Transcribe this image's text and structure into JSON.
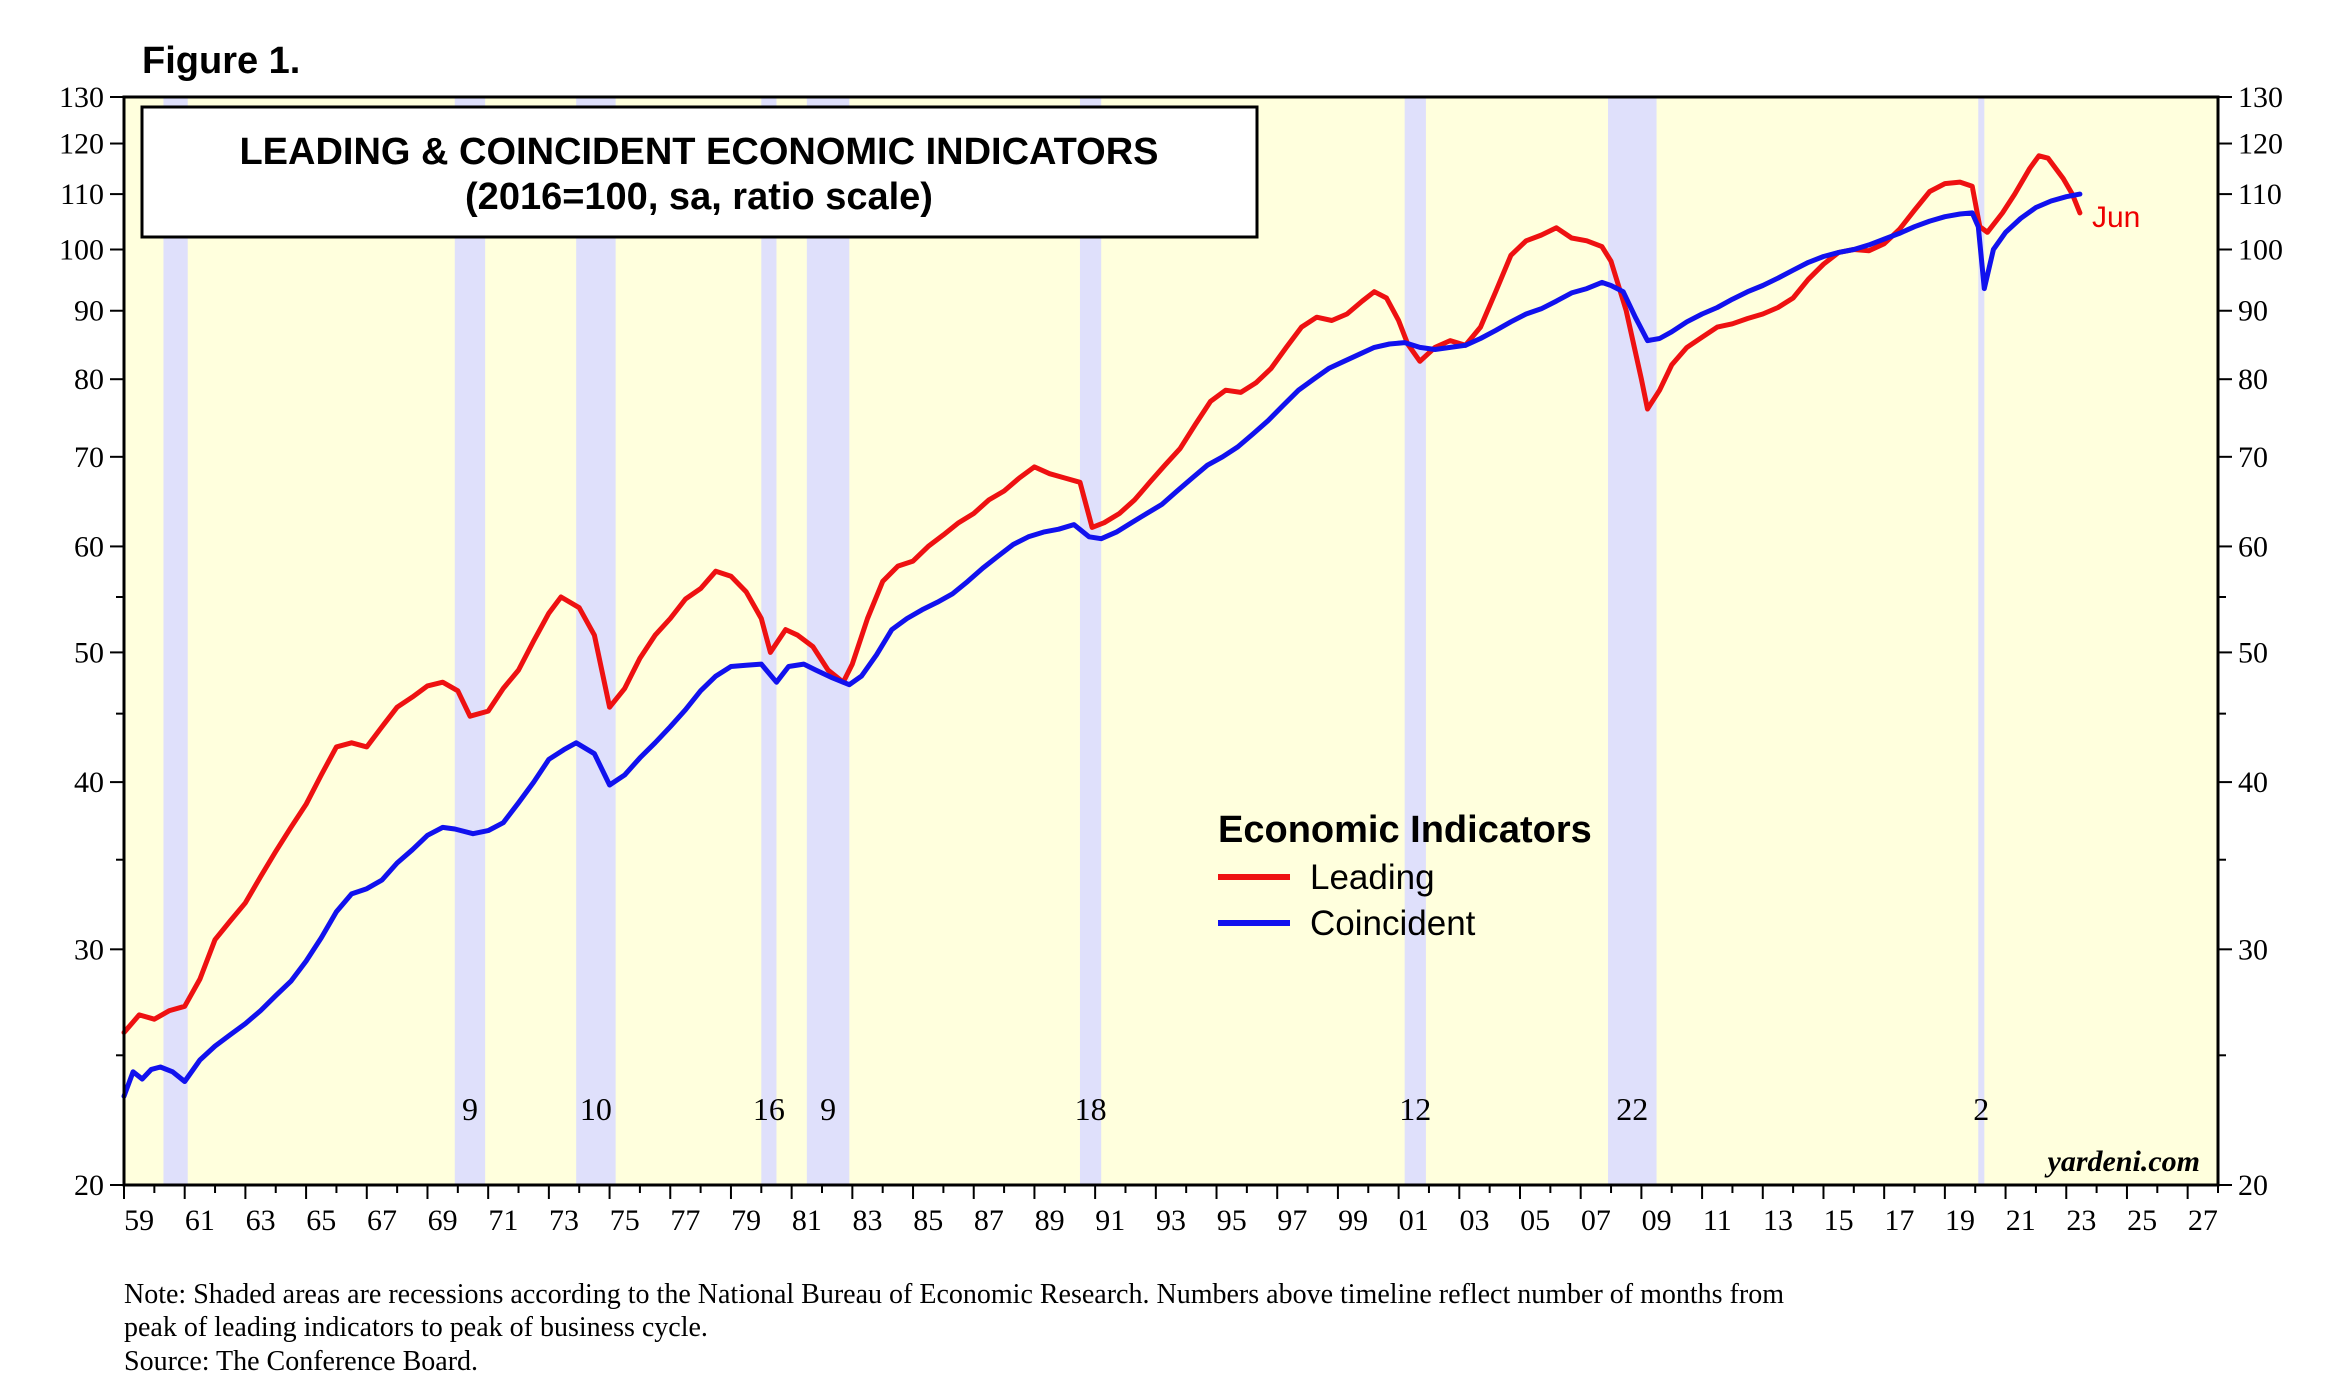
{
  "figure_label": "Figure 1.",
  "colors": {
    "plot_background": "#ffffdd",
    "recession_shading": "#dfe0fb",
    "leading": "#ee1111",
    "coincident": "#1111ee"
  },
  "chart_data": {
    "type": "line",
    "title": "LEADING & COINCIDENT ECONOMIC INDICATORS",
    "subtitle": "(2016=100, sa, ratio scale)",
    "y_scale": "log",
    "ylim": [
      20,
      130
    ],
    "xlim": [
      1959.0,
      2028.0
    ],
    "y_ticks": [
      20,
      30,
      40,
      50,
      60,
      70,
      80,
      90,
      100,
      110,
      120,
      130
    ],
    "y_minor_ticks": [
      25,
      35,
      45,
      55
    ],
    "x_tick_labels": [
      "59",
      "61",
      "63",
      "65",
      "67",
      "69",
      "71",
      "73",
      "75",
      "77",
      "79",
      "81",
      "83",
      "85",
      "87",
      "89",
      "91",
      "93",
      "95",
      "97",
      "99",
      "01",
      "03",
      "05",
      "07",
      "09",
      "11",
      "13",
      "15",
      "17",
      "19",
      "21",
      "23",
      "25",
      "27"
    ],
    "grid": false,
    "legend": {
      "title": "Economic Indicators",
      "placement": "center-right",
      "items": [
        "Leading",
        "Coincident"
      ]
    },
    "end_label": "Jun",
    "watermark": "yardeni.com",
    "recessions": [
      {
        "start": 1960.3,
        "end": 1961.1,
        "lead_months": ""
      },
      {
        "start": 1969.9,
        "end": 1970.9,
        "lead_months": "9"
      },
      {
        "start": 1973.9,
        "end": 1975.2,
        "lead_months": "10"
      },
      {
        "start": 1980.0,
        "end": 1980.5,
        "lead_months": "16"
      },
      {
        "start": 1981.5,
        "end": 1982.9,
        "lead_months": "9"
      },
      {
        "start": 1990.5,
        "end": 1991.2,
        "lead_months": "18"
      },
      {
        "start": 2001.2,
        "end": 2001.9,
        "lead_months": "12"
      },
      {
        "start": 2007.9,
        "end": 2009.5,
        "lead_months": "22"
      },
      {
        "start": 2020.1,
        "end": 2020.3,
        "lead_months": "2"
      }
    ],
    "series": [
      {
        "name": "Leading",
        "points": [
          [
            1959.0,
            26.0
          ],
          [
            1959.5,
            26.8
          ],
          [
            1960.0,
            26.6
          ],
          [
            1960.5,
            27.0
          ],
          [
            1961.0,
            27.2
          ],
          [
            1961.5,
            28.5
          ],
          [
            1962.0,
            30.5
          ],
          [
            1962.5,
            31.5
          ],
          [
            1963.0,
            32.5
          ],
          [
            1963.5,
            34.0
          ],
          [
            1964.0,
            35.5
          ],
          [
            1964.5,
            37.0
          ],
          [
            1965.0,
            38.5
          ],
          [
            1965.5,
            40.5
          ],
          [
            1966.0,
            42.5
          ],
          [
            1966.5,
            42.8
          ],
          [
            1967.0,
            42.5
          ],
          [
            1967.5,
            44.0
          ],
          [
            1968.0,
            45.5
          ],
          [
            1968.5,
            46.3
          ],
          [
            1969.0,
            47.2
          ],
          [
            1969.5,
            47.5
          ],
          [
            1970.0,
            46.8
          ],
          [
            1970.4,
            44.8
          ],
          [
            1971.0,
            45.2
          ],
          [
            1971.5,
            47.0
          ],
          [
            1972.0,
            48.5
          ],
          [
            1972.5,
            51.0
          ],
          [
            1973.0,
            53.5
          ],
          [
            1973.4,
            55.0
          ],
          [
            1974.0,
            54.0
          ],
          [
            1974.5,
            51.5
          ],
          [
            1975.0,
            45.5
          ],
          [
            1975.5,
            47.0
          ],
          [
            1976.0,
            49.5
          ],
          [
            1976.5,
            51.5
          ],
          [
            1977.0,
            53.0
          ],
          [
            1977.5,
            54.8
          ],
          [
            1978.0,
            55.8
          ],
          [
            1978.5,
            57.5
          ],
          [
            1979.0,
            57.0
          ],
          [
            1979.5,
            55.5
          ],
          [
            1980.0,
            53.0
          ],
          [
            1980.3,
            50.0
          ],
          [
            1980.8,
            52.0
          ],
          [
            1981.2,
            51.5
          ],
          [
            1981.7,
            50.5
          ],
          [
            1982.2,
            48.5
          ],
          [
            1982.7,
            47.5
          ],
          [
            1983.0,
            49.0
          ],
          [
            1983.5,
            53.0
          ],
          [
            1984.0,
            56.5
          ],
          [
            1984.5,
            58.0
          ],
          [
            1985.0,
            58.5
          ],
          [
            1985.5,
            60.0
          ],
          [
            1986.0,
            61.2
          ],
          [
            1986.5,
            62.5
          ],
          [
            1987.0,
            63.5
          ],
          [
            1987.5,
            65.0
          ],
          [
            1988.0,
            66.0
          ],
          [
            1988.5,
            67.5
          ],
          [
            1989.0,
            68.8
          ],
          [
            1989.5,
            68.0
          ],
          [
            1990.0,
            67.5
          ],
          [
            1990.5,
            67.0
          ],
          [
            1990.9,
            62.0
          ],
          [
            1991.3,
            62.5
          ],
          [
            1991.8,
            63.5
          ],
          [
            1992.3,
            65.0
          ],
          [
            1992.8,
            67.0
          ],
          [
            1993.3,
            69.0
          ],
          [
            1993.8,
            71.0
          ],
          [
            1994.3,
            74.0
          ],
          [
            1994.8,
            77.0
          ],
          [
            1995.3,
            78.5
          ],
          [
            1995.8,
            78.2
          ],
          [
            1996.3,
            79.5
          ],
          [
            1996.8,
            81.5
          ],
          [
            1997.3,
            84.5
          ],
          [
            1997.8,
            87.5
          ],
          [
            1998.3,
            89.0
          ],
          [
            1998.8,
            88.5
          ],
          [
            1999.3,
            89.5
          ],
          [
            1999.8,
            91.5
          ],
          [
            2000.2,
            93.0
          ],
          [
            2000.6,
            92.0
          ],
          [
            2001.0,
            88.5
          ],
          [
            2001.3,
            85.0
          ],
          [
            2001.7,
            82.5
          ],
          [
            2002.2,
            84.5
          ],
          [
            2002.7,
            85.5
          ],
          [
            2003.2,
            84.8
          ],
          [
            2003.7,
            87.5
          ],
          [
            2004.2,
            93.0
          ],
          [
            2004.7,
            99.0
          ],
          [
            2005.2,
            101.5
          ],
          [
            2005.7,
            102.5
          ],
          [
            2006.2,
            103.8
          ],
          [
            2006.7,
            102.0
          ],
          [
            2007.2,
            101.5
          ],
          [
            2007.7,
            100.5
          ],
          [
            2008.0,
            98.0
          ],
          [
            2008.5,
            90.0
          ],
          [
            2009.0,
            80.0
          ],
          [
            2009.2,
            76.0
          ],
          [
            2009.6,
            78.5
          ],
          [
            2010.0,
            82.0
          ],
          [
            2010.5,
            84.5
          ],
          [
            2011.0,
            86.0
          ],
          [
            2011.5,
            87.5
          ],
          [
            2012.0,
            88.0
          ],
          [
            2012.5,
            88.8
          ],
          [
            2013.0,
            89.5
          ],
          [
            2013.5,
            90.5
          ],
          [
            2014.0,
            92.0
          ],
          [
            2014.5,
            95.0
          ],
          [
            2015.0,
            97.5
          ],
          [
            2015.5,
            99.5
          ],
          [
            2016.0,
            100.0
          ],
          [
            2016.5,
            99.8
          ],
          [
            2017.0,
            101.0
          ],
          [
            2017.5,
            103.5
          ],
          [
            2018.0,
            107.0
          ],
          [
            2018.5,
            110.5
          ],
          [
            2019.0,
            112.0
          ],
          [
            2019.5,
            112.3
          ],
          [
            2019.9,
            111.5
          ],
          [
            2020.15,
            104.0
          ],
          [
            2020.4,
            103.0
          ],
          [
            2020.9,
            106.5
          ],
          [
            2021.3,
            110.0
          ],
          [
            2021.8,
            115.0
          ],
          [
            2022.1,
            117.5
          ],
          [
            2022.4,
            117.0
          ],
          [
            2022.9,
            113.0
          ],
          [
            2023.2,
            110.0
          ],
          [
            2023.45,
            106.5
          ]
        ]
      },
      {
        "name": "Coincident",
        "points": [
          [
            1959.0,
            23.3
          ],
          [
            1959.3,
            24.3
          ],
          [
            1959.6,
            24.0
          ],
          [
            1959.9,
            24.4
          ],
          [
            1960.2,
            24.5
          ],
          [
            1960.6,
            24.3
          ],
          [
            1961.0,
            23.9
          ],
          [
            1961.5,
            24.8
          ],
          [
            1962.0,
            25.4
          ],
          [
            1962.5,
            25.9
          ],
          [
            1963.0,
            26.4
          ],
          [
            1963.5,
            27.0
          ],
          [
            1964.0,
            27.7
          ],
          [
            1964.5,
            28.4
          ],
          [
            1965.0,
            29.4
          ],
          [
            1965.5,
            30.6
          ],
          [
            1966.0,
            32.0
          ],
          [
            1966.5,
            33.0
          ],
          [
            1967.0,
            33.3
          ],
          [
            1967.5,
            33.8
          ],
          [
            1968.0,
            34.8
          ],
          [
            1968.5,
            35.6
          ],
          [
            1969.0,
            36.5
          ],
          [
            1969.5,
            37.0
          ],
          [
            1969.9,
            36.9
          ],
          [
            1970.5,
            36.6
          ],
          [
            1971.0,
            36.8
          ],
          [
            1971.5,
            37.3
          ],
          [
            1972.0,
            38.6
          ],
          [
            1972.5,
            40.0
          ],
          [
            1973.0,
            41.6
          ],
          [
            1973.5,
            42.3
          ],
          [
            1973.9,
            42.8
          ],
          [
            1974.5,
            42.0
          ],
          [
            1975.0,
            39.8
          ],
          [
            1975.5,
            40.5
          ],
          [
            1976.0,
            41.7
          ],
          [
            1976.5,
            42.8
          ],
          [
            1977.0,
            44.0
          ],
          [
            1977.5,
            45.3
          ],
          [
            1978.0,
            46.8
          ],
          [
            1978.5,
            48.0
          ],
          [
            1979.0,
            48.8
          ],
          [
            1979.5,
            48.9
          ],
          [
            1980.0,
            49.0
          ],
          [
            1980.5,
            47.5
          ],
          [
            1980.9,
            48.8
          ],
          [
            1981.4,
            49.0
          ],
          [
            1981.8,
            48.5
          ],
          [
            1982.3,
            47.9
          ],
          [
            1982.9,
            47.3
          ],
          [
            1983.3,
            48.0
          ],
          [
            1983.8,
            49.8
          ],
          [
            1984.3,
            52.0
          ],
          [
            1984.8,
            53.0
          ],
          [
            1985.3,
            53.8
          ],
          [
            1985.8,
            54.5
          ],
          [
            1986.3,
            55.3
          ],
          [
            1986.8,
            56.5
          ],
          [
            1987.3,
            57.8
          ],
          [
            1987.8,
            59.0
          ],
          [
            1988.3,
            60.2
          ],
          [
            1988.8,
            61.0
          ],
          [
            1989.3,
            61.5
          ],
          [
            1989.8,
            61.8
          ],
          [
            1990.3,
            62.3
          ],
          [
            1990.8,
            61.0
          ],
          [
            1991.2,
            60.8
          ],
          [
            1991.7,
            61.5
          ],
          [
            1992.2,
            62.5
          ],
          [
            1992.7,
            63.5
          ],
          [
            1993.2,
            64.5
          ],
          [
            1993.7,
            66.0
          ],
          [
            1994.2,
            67.5
          ],
          [
            1994.7,
            69.0
          ],
          [
            1995.2,
            70.0
          ],
          [
            1995.7,
            71.2
          ],
          [
            1996.2,
            72.8
          ],
          [
            1996.7,
            74.5
          ],
          [
            1997.2,
            76.5
          ],
          [
            1997.7,
            78.5
          ],
          [
            1998.2,
            80.0
          ],
          [
            1998.7,
            81.5
          ],
          [
            1999.2,
            82.5
          ],
          [
            1999.7,
            83.5
          ],
          [
            2000.2,
            84.5
          ],
          [
            2000.7,
            85.0
          ],
          [
            2001.2,
            85.2
          ],
          [
            2001.7,
            84.5
          ],
          [
            2002.2,
            84.2
          ],
          [
            2002.7,
            84.5
          ],
          [
            2003.2,
            84.8
          ],
          [
            2003.7,
            85.8
          ],
          [
            2004.2,
            87.0
          ],
          [
            2004.7,
            88.3
          ],
          [
            2005.2,
            89.5
          ],
          [
            2005.7,
            90.3
          ],
          [
            2006.2,
            91.5
          ],
          [
            2006.7,
            92.8
          ],
          [
            2007.2,
            93.5
          ],
          [
            2007.7,
            94.5
          ],
          [
            2008.0,
            94.0
          ],
          [
            2008.4,
            93.0
          ],
          [
            2008.8,
            89.0
          ],
          [
            2009.2,
            85.5
          ],
          [
            2009.6,
            85.8
          ],
          [
            2010.0,
            86.8
          ],
          [
            2010.5,
            88.3
          ],
          [
            2011.0,
            89.5
          ],
          [
            2011.5,
            90.5
          ],
          [
            2012.0,
            91.8
          ],
          [
            2012.5,
            93.0
          ],
          [
            2013.0,
            94.0
          ],
          [
            2013.5,
            95.2
          ],
          [
            2014.0,
            96.5
          ],
          [
            2014.5,
            97.8
          ],
          [
            2015.0,
            98.8
          ],
          [
            2015.5,
            99.5
          ],
          [
            2016.0,
            100.0
          ],
          [
            2016.5,
            100.8
          ],
          [
            2017.0,
            101.8
          ],
          [
            2017.5,
            102.8
          ],
          [
            2018.0,
            104.0
          ],
          [
            2018.5,
            105.0
          ],
          [
            2019.0,
            105.8
          ],
          [
            2019.5,
            106.3
          ],
          [
            2019.9,
            106.5
          ],
          [
            2020.1,
            104.0
          ],
          [
            2020.3,
            93.5
          ],
          [
            2020.6,
            100.0
          ],
          [
            2021.0,
            103.0
          ],
          [
            2021.5,
            105.5
          ],
          [
            2022.0,
            107.5
          ],
          [
            2022.5,
            108.7
          ],
          [
            2023.0,
            109.5
          ],
          [
            2023.45,
            110.0
          ]
        ]
      }
    ]
  },
  "note_lines": [
    "Note: Shaded areas are recessions according to the National Bureau of Economic Research. Numbers above timeline reflect number of months from",
    "peak of leading indicators to peak of business cycle.",
    "Source: The Conference Board."
  ]
}
